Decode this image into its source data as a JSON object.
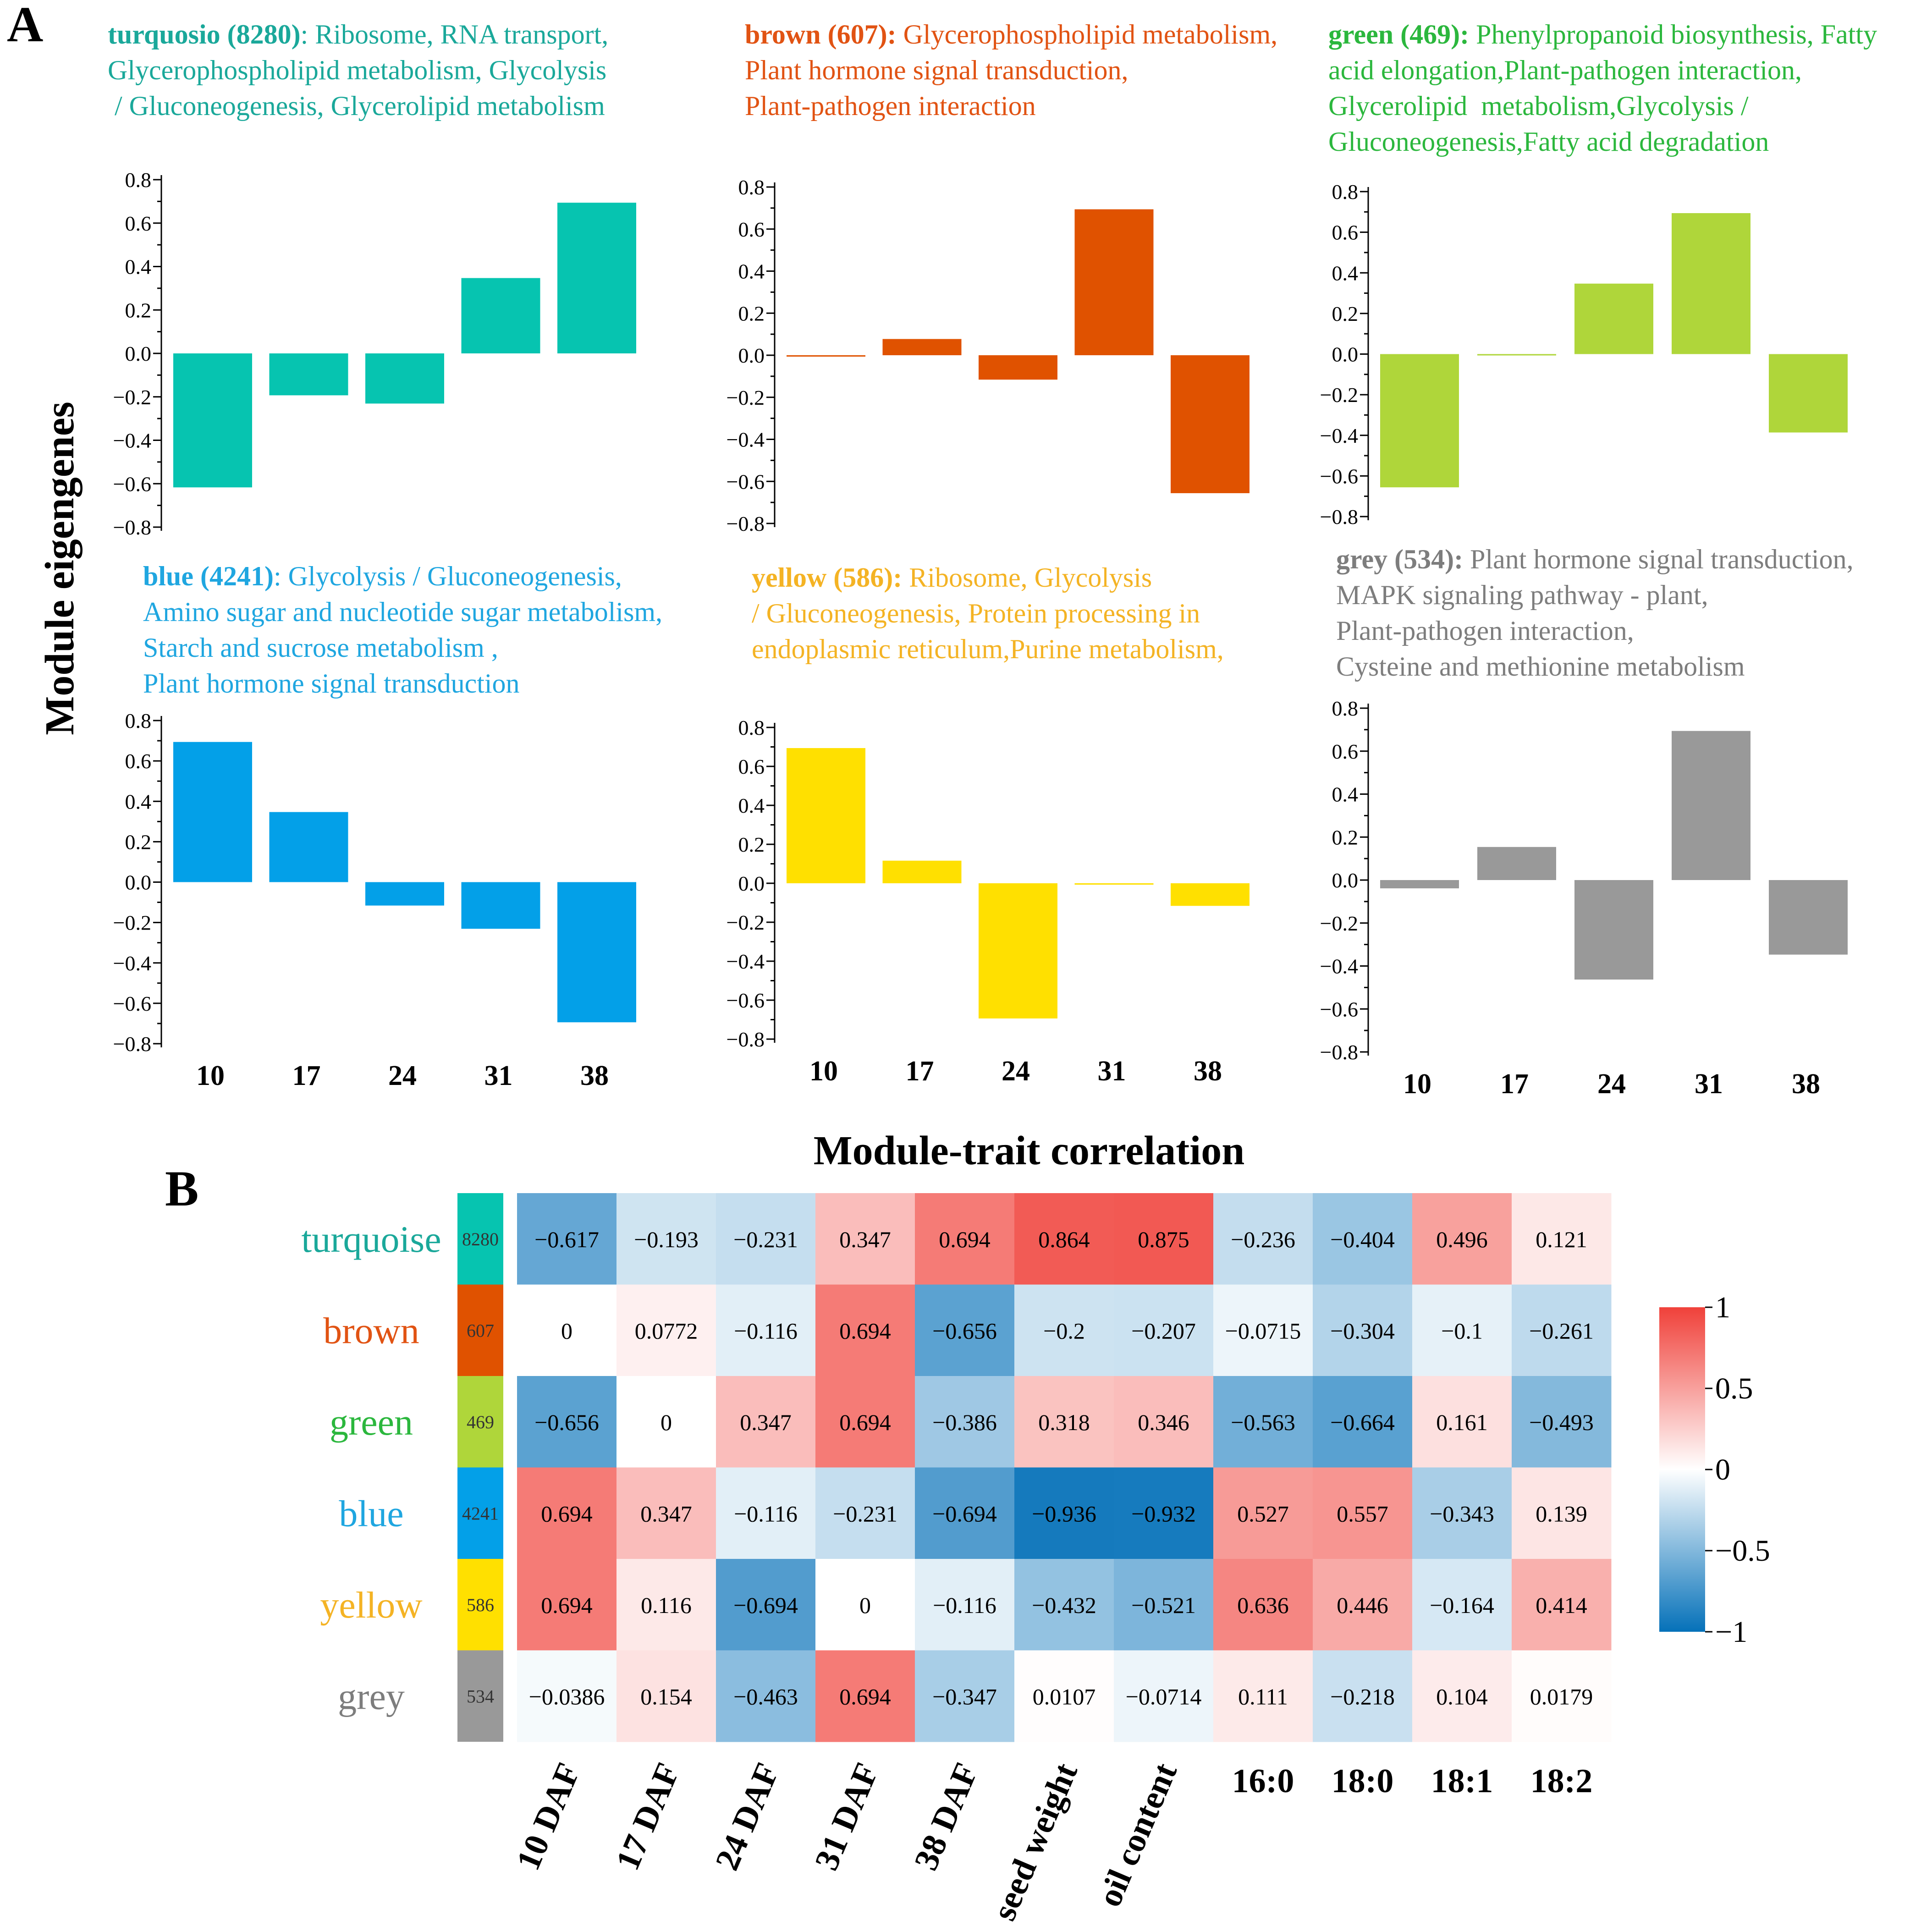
{
  "panel_a": {
    "label": "A",
    "ylabel": "Module eigengenes",
    "ylim": [
      -0.8,
      0.8
    ],
    "ticks": [
      "0.8",
      "0.6",
      "0.4",
      "0.2",
      "0.0",
      "−0.2",
      "−0.4",
      "−0.6",
      "−0.8"
    ],
    "tick_values": [
      0.8,
      0.6,
      0.4,
      0.2,
      0.0,
      -0.2,
      -0.4,
      -0.6,
      -0.8
    ],
    "categories": [
      "10",
      "17",
      "24",
      "31",
      "38"
    ]
  },
  "panel_b": {
    "label": "B",
    "title": "Module-trait correlation",
    "colorbar_ticks": [
      "1",
      "0.5",
      "0",
      "−0.5",
      "−1"
    ]
  },
  "colors": {
    "turquoise": "#06c4b0",
    "brown": "#e05200",
    "green": "#afd63a",
    "blue": "#03a0e8",
    "yellow": "#ffe000",
    "grey": "#999999",
    "title_turquoise": "#1aa89a",
    "title_brown": "#e15313",
    "title_green": "#2bb73d",
    "title_blue": "#1fa6e0",
    "title_yellow": "#f4b324",
    "title_grey": "#7d7d7d"
  },
  "chart_data": [
    {
      "type": "bar",
      "module": "turquoise",
      "title_bold": "turquosio (8280)",
      "title_lines": [
        ": Ribosome, RNA transport,",
        "Glycerophospholipid metabolism, Glycolysis",
        " / Gluconeogenesis, Glycerolipid metabolism"
      ],
      "categories": [
        "10",
        "17",
        "24",
        "31",
        "38"
      ],
      "values": [
        -0.617,
        -0.193,
        -0.231,
        0.347,
        0.694
      ],
      "ylim": [
        -0.8,
        0.8
      ]
    },
    {
      "type": "bar",
      "module": "brown",
      "title_bold": "brown (607):",
      "title_lines": [
        " Glycerophospholipid metabolism,",
        "Plant hormone signal transduction,",
        "Plant-pathogen interaction"
      ],
      "categories": [
        "10",
        "17",
        "24",
        "31",
        "38"
      ],
      "values": [
        0,
        0.0772,
        -0.116,
        0.694,
        -0.656
      ],
      "ylim": [
        -0.8,
        0.8
      ]
    },
    {
      "type": "bar",
      "module": "green",
      "title_bold": "green (469):",
      "title_lines": [
        " Phenylpropanoid biosynthesis, Fatty",
        "acid elongation,Plant-pathogen interaction,",
        "Glycerolipid  metabolism,Glycolysis /",
        "Gluconeogenesis,Fatty acid degradation"
      ],
      "categories": [
        "10",
        "17",
        "24",
        "31",
        "38"
      ],
      "values": [
        -0.656,
        0,
        0.347,
        0.694,
        -0.386
      ],
      "ylim": [
        -0.8,
        0.8
      ]
    },
    {
      "type": "bar",
      "module": "blue",
      "title_bold": "blue (4241)",
      "title_lines": [
        ": Glycolysis / Gluconeogenesis,",
        "Amino sugar and nucleotide sugar metabolism,",
        "Starch and sucrose metabolism ,",
        "Plant hormone signal transduction"
      ],
      "categories": [
        "10",
        "17",
        "24",
        "31",
        "38"
      ],
      "values": [
        0.694,
        0.347,
        -0.116,
        -0.231,
        -0.694
      ],
      "ylim": [
        -0.8,
        0.8
      ]
    },
    {
      "type": "bar",
      "module": "yellow",
      "title_bold": "yellow (586):",
      "title_lines": [
        " Ribosome, Glycolysis",
        "/ Gluconeogenesis, Protein processing in",
        "endoplasmic reticulum,Purine metabolism,"
      ],
      "categories": [
        "10",
        "17",
        "24",
        "31",
        "38"
      ],
      "values": [
        0.694,
        0.116,
        -0.694,
        0,
        -0.116
      ],
      "ylim": [
        -0.8,
        0.8
      ]
    },
    {
      "type": "bar",
      "module": "grey",
      "title_bold": "grey (534):",
      "title_lines": [
        " Plant hormone signal transduction,",
        "MAPK signaling pathway - plant,",
        "Plant-pathogen interaction,",
        "Cysteine and methionine metabolism"
      ],
      "categories": [
        "10",
        "17",
        "24",
        "31",
        "38"
      ],
      "values": [
        -0.0386,
        0.154,
        -0.463,
        0.694,
        -0.347
      ],
      "ylim": [
        -0.8,
        0.8
      ]
    },
    {
      "type": "heatmap",
      "title": "Module-trait correlation",
      "rows": [
        "turquoise",
        "brown",
        "green",
        "blue",
        "yellow",
        "grey"
      ],
      "row_sizes": [
        "8280",
        "607",
        "469",
        "4241",
        "586",
        "534"
      ],
      "columns": [
        "10 DAF",
        "17 DAF",
        "24 DAF",
        "31 DAF",
        "38 DAF",
        "seed weight",
        "oil content",
        "16:0",
        "18:0",
        "18:1",
        "18:2"
      ],
      "values": [
        [
          -0.617,
          -0.193,
          -0.231,
          0.347,
          0.694,
          0.864,
          0.875,
          -0.236,
          -0.404,
          0.496,
          0.121
        ],
        [
          0,
          0.0772,
          -0.116,
          0.694,
          -0.656,
          -0.2,
          -0.207,
          -0.0715,
          -0.304,
          -0.1,
          -0.261
        ],
        [
          -0.656,
          0,
          0.347,
          0.694,
          -0.386,
          0.318,
          0.346,
          -0.563,
          -0.664,
          0.161,
          -0.493
        ],
        [
          0.694,
          0.347,
          -0.116,
          -0.231,
          -0.694,
          -0.936,
          -0.932,
          0.527,
          0.557,
          -0.343,
          0.139
        ],
        [
          0.694,
          0.116,
          -0.694,
          0,
          -0.116,
          -0.432,
          -0.521,
          0.636,
          0.446,
          -0.164,
          0.414
        ],
        [
          -0.0386,
          0.154,
          -0.463,
          0.694,
          -0.347,
          0.0107,
          -0.0714,
          0.111,
          -0.218,
          0.104,
          0.0179
        ]
      ],
      "value_labels": [
        [
          "−0.617",
          "−0.193",
          "−0.231",
          "0.347",
          "0.694",
          "0.864",
          "0.875",
          "−0.236",
          "−0.404",
          "0.496",
          "0.121"
        ],
        [
          "0",
          "0.0772",
          "−0.116",
          "0.694",
          "−0.656",
          "−0.2",
          "−0.207",
          "−0.0715",
          "−0.304",
          "−0.1",
          "−0.261"
        ],
        [
          "−0.656",
          "0",
          "0.347",
          "0.694",
          "−0.386",
          "0.318",
          "0.346",
          "−0.563",
          "−0.664",
          "0.161",
          "−0.493"
        ],
        [
          "0.694",
          "0.347",
          "−0.116",
          "−0.231",
          "−0.694",
          "−0.936",
          "−0.932",
          "0.527",
          "0.557",
          "−0.343",
          "0.139"
        ],
        [
          "0.694",
          "0.116",
          "−0.694",
          "0",
          "−0.116",
          "−0.432",
          "−0.521",
          "0.636",
          "0.446",
          "−0.164",
          "0.414"
        ],
        [
          "−0.0386",
          "0.154",
          "−0.463",
          "0.694",
          "−0.347",
          "0.0107",
          "−0.0714",
          "0.111",
          "−0.218",
          "0.104",
          "0.0179"
        ]
      ],
      "colorscale": {
        "min": -1,
        "max": 1,
        "low": "#0571b9",
        "mid": "#ffffff",
        "high": "#f0413a"
      }
    }
  ]
}
